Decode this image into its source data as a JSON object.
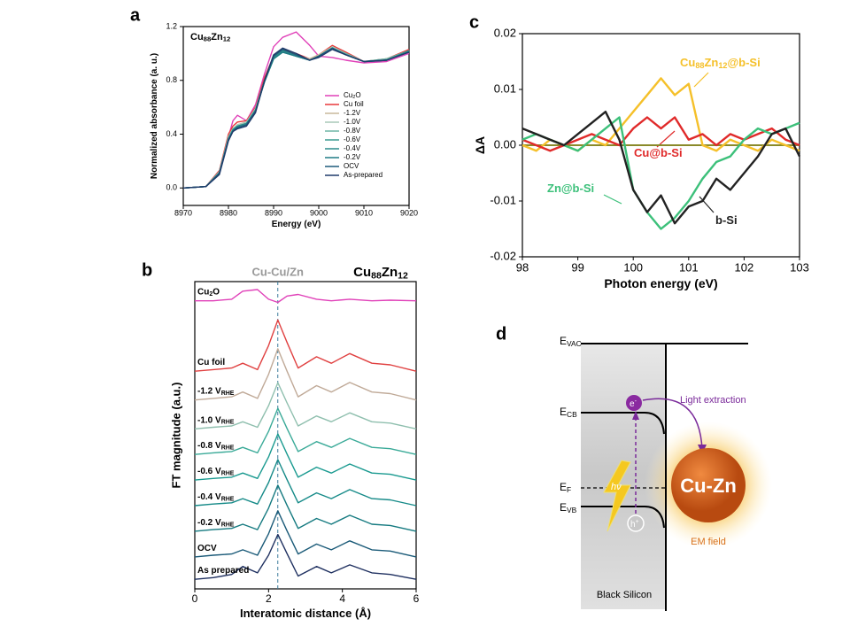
{
  "chart_data": [
    {
      "type": "line",
      "panel": "a",
      "title": [
        "Cu",
        "88",
        "Zn",
        "12"
      ],
      "xlabel": "Energy (eV)",
      "ylabel": "Normalized absorbance (a. u.)",
      "x": [
        8970,
        8975,
        8978,
        8980,
        8981,
        8982,
        8984,
        8986,
        8988,
        8990,
        8992,
        8995,
        8998,
        9000,
        9003,
        9006,
        9010,
        9015,
        9020
      ],
      "xlim": [
        8970,
        9020
      ],
      "xticks": [
        8970,
        8980,
        8990,
        9000,
        9010,
        9020
      ],
      "ylim": [
        -0.13,
        1.2
      ],
      "yticks": [
        {
          "value": 0,
          "label": "0.0"
        },
        0.4,
        0.8,
        1.2
      ],
      "legend": "lower right",
      "series": [
        {
          "name": [
            "Cu",
            "2",
            "O"
          ],
          "color": "#e040b8",
          "values": [
            0,
            0.01,
            0.12,
            0.38,
            0.5,
            0.54,
            0.5,
            0.62,
            0.85,
            1.05,
            1.12,
            1.16,
            1.06,
            0.98,
            0.97,
            0.95,
            0.93,
            0.94,
            1.0
          ]
        },
        {
          "name": [
            "Cu foil"
          ],
          "color": "#e8393a",
          "values": [
            0,
            0.01,
            0.13,
            0.4,
            0.46,
            0.49,
            0.5,
            0.6,
            0.82,
            0.98,
            1.03,
            1.0,
            0.96,
            0.99,
            1.06,
            1.01,
            0.94,
            0.96,
            1.03
          ]
        },
        {
          "name": [
            "-1.2V"
          ],
          "color": "#c9b99a",
          "values": [
            0,
            0.01,
            0.12,
            0.38,
            0.44,
            0.47,
            0.49,
            0.59,
            0.8,
            0.96,
            1.02,
            0.99,
            0.96,
            0.99,
            1.05,
            1.0,
            0.94,
            0.96,
            1.02
          ]
        },
        {
          "name": [
            "-1.0V"
          ],
          "color": "#a8c8b8",
          "values": [
            0,
            0.01,
            0.12,
            0.38,
            0.44,
            0.47,
            0.49,
            0.59,
            0.8,
            0.97,
            1.02,
            0.99,
            0.95,
            0.98,
            1.05,
            1.0,
            0.94,
            0.96,
            1.02
          ]
        },
        {
          "name": [
            "-0.8V"
          ],
          "color": "#6fb5a5",
          "values": [
            0,
            0.01,
            0.12,
            0.37,
            0.44,
            0.46,
            0.48,
            0.58,
            0.79,
            0.96,
            1.01,
            0.99,
            0.95,
            0.98,
            1.04,
            1.0,
            0.94,
            0.96,
            1.02
          ]
        },
        {
          "name": [
            "-0.6V"
          ],
          "color": "#3a9a90",
          "values": [
            0,
            0.01,
            0.11,
            0.37,
            0.43,
            0.46,
            0.48,
            0.58,
            0.79,
            0.96,
            1.01,
            0.98,
            0.95,
            0.98,
            1.04,
            0.99,
            0.94,
            0.95,
            1.02
          ]
        },
        {
          "name": [
            "-0.4V"
          ],
          "color": "#2a8a8a",
          "values": [
            0,
            0.01,
            0.11,
            0.36,
            0.43,
            0.46,
            0.48,
            0.58,
            0.8,
            0.97,
            1.02,
            0.98,
            0.95,
            0.98,
            1.04,
            0.99,
            0.94,
            0.95,
            1.02
          ]
        },
        {
          "name": [
            "-0.2V"
          ],
          "color": "#1f7a85",
          "values": [
            0,
            0.01,
            0.11,
            0.36,
            0.43,
            0.45,
            0.47,
            0.57,
            0.79,
            0.96,
            1.01,
            0.98,
            0.95,
            0.98,
            1.04,
            0.99,
            0.94,
            0.95,
            1.01
          ]
        },
        {
          "name": [
            "OCV"
          ],
          "color": "#1d5a7a",
          "values": [
            0,
            0.01,
            0.11,
            0.36,
            0.42,
            0.45,
            0.47,
            0.57,
            0.8,
            0.98,
            1.03,
            0.99,
            0.95,
            0.98,
            1.04,
            0.99,
            0.94,
            0.95,
            1.01
          ]
        },
        {
          "name": [
            "As-prepared"
          ],
          "color": "#1f3a6a",
          "values": [
            0,
            0.01,
            0.1,
            0.35,
            0.42,
            0.44,
            0.46,
            0.56,
            0.8,
            0.99,
            1.04,
            1.0,
            0.95,
            0.97,
            1.03,
            0.99,
            0.94,
            0.95,
            1.01
          ]
        }
      ]
    },
    {
      "type": "line",
      "panel": "b",
      "title": [
        "Cu",
        "88",
        "Zn",
        "12"
      ],
      "xlabel": "Interatomic distance (Å)",
      "ylabel": "FT magnitude (a.u.)",
      "x": [
        0,
        0.5,
        1,
        1.3,
        1.7,
        2.0,
        2.25,
        2.5,
        2.8,
        3.3,
        3.7,
        4.2,
        4.8,
        5.3,
        6
      ],
      "xlim": [
        0,
        6
      ],
      "xticks": [
        0,
        2,
        4,
        6
      ],
      "ylim": [
        0,
        9.6
      ],
      "reference": {
        "x": 2.25,
        "label": "Cu-Cu/Zn"
      },
      "series": [
        {
          "name": [
            "Cu",
            "2",
            "O"
          ],
          "color": "#e040b8",
          "values": [
            9.0,
            9.0,
            9.05,
            9.3,
            9.35,
            9.05,
            8.95,
            9.15,
            9.2,
            9.05,
            9.0,
            9.05,
            9.0,
            9.02,
            9.0
          ]
        },
        {
          "name": [
            "Cu foil"
          ],
          "color": "#e04040",
          "values": [
            6.8,
            6.85,
            6.9,
            7.05,
            6.85,
            7.6,
            8.4,
            7.7,
            6.9,
            7.25,
            7.05,
            7.35,
            7.05,
            7.0,
            6.8
          ]
        },
        {
          "name": [
            "-1.2 V",
            "RHE"
          ],
          "color": "#c0aa98",
          "values": [
            5.9,
            5.95,
            6.0,
            6.15,
            5.95,
            6.7,
            7.5,
            6.8,
            6.0,
            6.35,
            6.15,
            6.45,
            6.15,
            6.1,
            5.9
          ]
        },
        {
          "name": [
            "-1.0 V",
            "RHE"
          ],
          "color": "#8fbfae",
          "values": [
            5.0,
            5.05,
            5.09,
            5.22,
            5.05,
            5.72,
            6.44,
            5.81,
            5.09,
            5.4,
            5.22,
            5.5,
            5.22,
            5.18,
            5.0
          ]
        },
        {
          "name": [
            "-0.8 V",
            "RHE"
          ],
          "color": "#3aaa98",
          "values": [
            4.2,
            4.25,
            4.29,
            4.42,
            4.25,
            4.92,
            5.64,
            5.01,
            4.29,
            4.6,
            4.42,
            4.7,
            4.42,
            4.38,
            4.2
          ]
        },
        {
          "name": [
            "-0.6 V",
            "RHE"
          ],
          "color": "#1a9a90",
          "values": [
            3.4,
            3.45,
            3.49,
            3.62,
            3.45,
            4.12,
            4.84,
            4.21,
            3.49,
            3.8,
            3.62,
            3.9,
            3.62,
            3.58,
            3.4
          ]
        },
        {
          "name": [
            "-0.4 V",
            "RHE"
          ],
          "color": "#158a88",
          "values": [
            2.6,
            2.65,
            2.69,
            2.82,
            2.65,
            3.32,
            4.04,
            3.41,
            2.69,
            3.0,
            2.82,
            3.1,
            2.82,
            2.78,
            2.6
          ]
        },
        {
          "name": [
            "-0.2 V",
            "RHE"
          ],
          "color": "#157a80",
          "values": [
            1.8,
            1.85,
            1.89,
            2.02,
            1.85,
            2.52,
            3.24,
            2.61,
            1.89,
            2.2,
            2.02,
            2.3,
            2.02,
            1.98,
            1.8
          ]
        },
        {
          "name": [
            "OCV"
          ],
          "color": "#1a5a78",
          "values": [
            1.0,
            1.05,
            1.09,
            1.22,
            1.05,
            1.72,
            2.44,
            1.81,
            1.09,
            1.4,
            1.22,
            1.5,
            1.22,
            1.18,
            1.0
          ]
        },
        {
          "name": [
            "As prepared"
          ],
          "color": "#1f3060",
          "values": [
            0.3,
            0.35,
            0.45,
            0.7,
            0.5,
            1.05,
            1.7,
            1.1,
            0.4,
            0.7,
            0.5,
            0.75,
            0.5,
            0.45,
            0.3
          ]
        }
      ]
    },
    {
      "type": "line",
      "panel": "c",
      "xlabel": "Photon energy (eV)",
      "ylabel": "ΔA",
      "x": [
        98,
        98.25,
        98.5,
        98.75,
        99,
        99.25,
        99.5,
        99.75,
        100,
        100.25,
        100.5,
        100.75,
        101,
        101.25,
        101.5,
        101.75,
        102,
        102.25,
        102.5,
        102.75,
        103
      ],
      "xlim": [
        98,
        103
      ],
      "xticks": [
        98,
        99,
        100,
        101,
        102,
        103
      ],
      "ylim": [
        -0.02,
        0.02
      ],
      "yticks": [
        -0.02,
        -0.01,
        {
          "value": 0,
          "label": "0.00"
        },
        0.01,
        0.02
      ],
      "baseline": {
        "y": 0,
        "color": "#8a8a2a"
      },
      "series": [
        {
          "name": [
            "Cu",
            "88",
            "Zn",
            "12",
            "@b-Si"
          ],
          "color": "#f5c02a",
          "values": [
            0.0,
            -0.001,
            0.001,
            0.0,
            -0.001,
            0.001,
            0.0,
            0.003,
            0.006,
            0.009,
            0.012,
            0.009,
            0.011,
            0.0,
            -0.001,
            0.001,
            0.0,
            -0.001,
            0.001,
            0.0,
            -0.001
          ]
        },
        {
          "name": [
            "Cu@b-Si"
          ],
          "color": "#e02a2a",
          "values": [
            0.001,
            0.0,
            -0.001,
            0.0,
            0.001,
            0.002,
            0.001,
            0.0,
            0.003,
            0.005,
            0.003,
            0.005,
            0.001,
            0.002,
            0.0,
            0.002,
            0.001,
            0.002,
            0.003,
            0.001,
            0.0
          ]
        },
        {
          "name": [
            "Zn@b-Si"
          ],
          "color": "#3cc07a",
          "values": [
            0.001,
            0.002,
            0.001,
            0.0,
            -0.001,
            0.001,
            0.003,
            0.005,
            -0.008,
            -0.012,
            -0.015,
            -0.013,
            -0.01,
            -0.006,
            -0.003,
            -0.002,
            0.001,
            0.003,
            0.002,
            0.003,
            0.004
          ]
        },
        {
          "name": [
            "b-Si"
          ],
          "color": "#222222",
          "values": [
            0.003,
            0.002,
            0.001,
            0.0,
            0.002,
            0.004,
            0.006,
            0.001,
            -0.008,
            -0.012,
            -0.009,
            -0.014,
            -0.011,
            -0.01,
            -0.006,
            -0.008,
            -0.005,
            -0.002,
            0.002,
            0.003,
            -0.002
          ]
        }
      ]
    }
  ],
  "diagram": {
    "panel": "d",
    "vac": [
      "E",
      "VAC"
    ],
    "cb": [
      "E",
      "CB"
    ],
    "fermi": [
      "E",
      "F"
    ],
    "vb": [
      "E",
      "VB"
    ],
    "electron": [
      "e",
      "-"
    ],
    "hole": [
      "h",
      "+"
    ],
    "photon": "hν",
    "extraction": "Light extraction",
    "particle": "Cu-Zn",
    "field": "EM field",
    "substrate": "Black Silicon"
  }
}
